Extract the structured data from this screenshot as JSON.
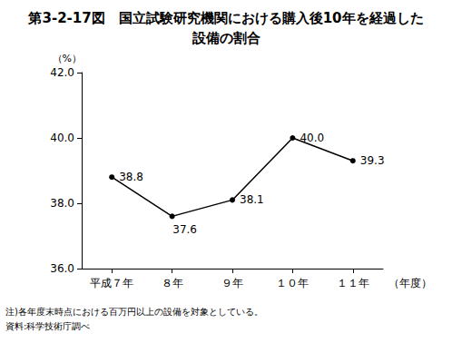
{
  "chart_data": {
    "type": "line",
    "title": "第3-2-17図　国立試験研究機関における購入後10年を経過した\n設備の割合",
    "x_label": "（年度）",
    "y_label": "（%）",
    "categories": [
      "平成７年",
      "８年",
      "９年",
      "１０年",
      "１１年"
    ],
    "values": [
      38.8,
      37.6,
      38.1,
      40.0,
      39.3
    ],
    "value_labels": [
      "38.8",
      "37.6",
      "38.1",
      "40.0",
      "39.3"
    ],
    "color": "#000000",
    "marker": "circle",
    "line_style": "solid",
    "data_labels": true,
    "grid": false,
    "ylim": [
      36,
      42
    ],
    "yticks": [
      {
        "value": 36,
        "label": "36.0"
      },
      {
        "value": 38,
        "label": "38.0"
      },
      {
        "value": 40,
        "label": "40.0"
      },
      {
        "value": 42,
        "label": "42.0"
      }
    ],
    "notes": [
      "注)各年度末時点における百万円以上の設備を対象としている。",
      "資料:科学技術庁調べ"
    ]
  }
}
